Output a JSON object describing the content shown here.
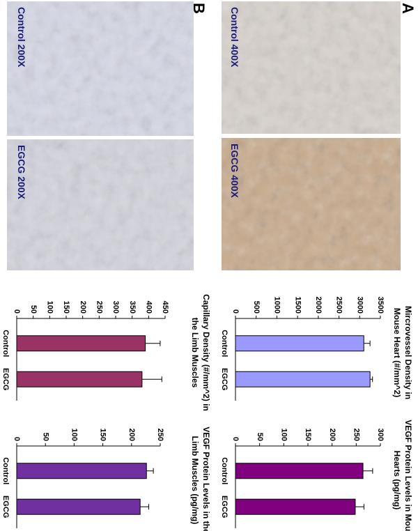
{
  "panel_labels": [
    "A",
    "B"
  ],
  "image_captions": [
    "Control 400X",
    "EGCG 400X",
    "Control 200X",
    "EGCG 200X"
  ],
  "chart_data": [
    {
      "type": "bar",
      "title": [
        "Mircrovessel Density in",
        "Mouse Heart (#/mm^2)"
      ],
      "categories": [
        "Control",
        "EGCG"
      ],
      "values": [
        3100,
        3250
      ],
      "errors": [
        150,
        60
      ],
      "color": "#9999ff",
      "ylim": [
        0,
        3500
      ],
      "yticks": [
        0,
        500,
        1000,
        1500,
        2000,
        2500,
        3000,
        3500
      ]
    },
    {
      "type": "bar",
      "title": [
        "VEGF Protein Levels in Mouse",
        "Hearts (pg/mg)"
      ],
      "categories": [
        "Control",
        "EGCG"
      ],
      "values": [
        264,
        248
      ],
      "errors": [
        20,
        18
      ],
      "color": "#800080",
      "ylim": [
        0,
        300
      ],
      "yticks": [
        0,
        50,
        100,
        150,
        200,
        250,
        300
      ]
    },
    {
      "type": "bar",
      "title": [
        "Capillary Density (#/mm^2) in",
        "the Limb Muscles"
      ],
      "categories": [
        "Control",
        "EGCG"
      ],
      "values": [
        390,
        380
      ],
      "errors": [
        45,
        60
      ],
      "color": "#993366",
      "ylim": [
        0,
        450
      ],
      "yticks": [
        0,
        50,
        100,
        150,
        200,
        250,
        300,
        350,
        400,
        450
      ]
    },
    {
      "type": "bar",
      "title": [
        "VEGF Protein Levels in the",
        "Limb Muscles (pg/mg)"
      ],
      "categories": [
        "Control",
        "EGCG"
      ],
      "values": [
        226,
        215
      ],
      "errors": [
        12,
        15
      ],
      "color": "#7030a0",
      "ylim": [
        0,
        250
      ],
      "yticks": [
        0,
        50,
        100,
        150,
        200,
        250
      ]
    }
  ]
}
